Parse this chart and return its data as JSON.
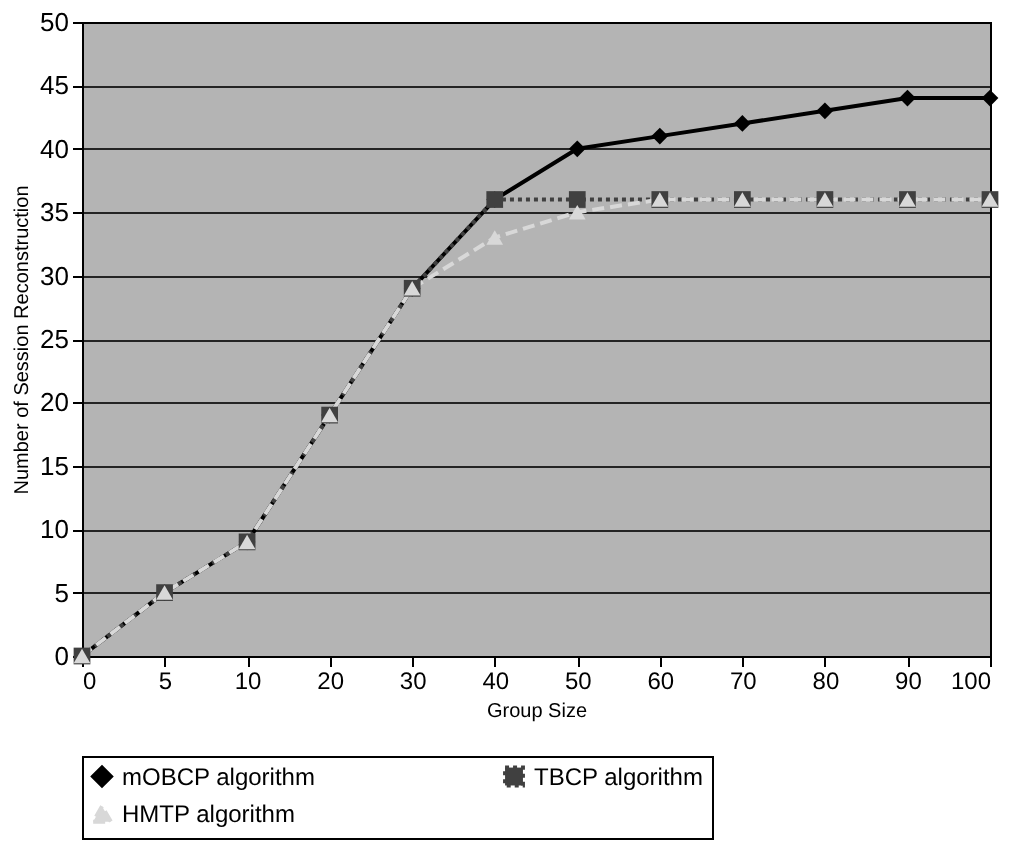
{
  "chart_data": {
    "type": "line",
    "xlabel": "Group Size",
    "ylabel": "Number of Session Reconstruction",
    "categories": [
      "0",
      "5",
      "10",
      "20",
      "30",
      "40",
      "50",
      "60",
      "70",
      "80",
      "90",
      "100"
    ],
    "ylim": [
      0,
      50
    ],
    "yticks": [
      0,
      5,
      10,
      15,
      20,
      25,
      30,
      35,
      40,
      45,
      50
    ],
    "grid": "y",
    "legend": "bottom",
    "series": [
      {
        "name": "mOBCP algorithm",
        "color": "#000000",
        "marker": "diamond",
        "line_style": "solid",
        "values": [
          0,
          5,
          9,
          19,
          29,
          36,
          40,
          41,
          42,
          43,
          44,
          44
        ]
      },
      {
        "name": "TBCP algorithm",
        "color": "#404040",
        "marker": "square",
        "line_style": "dotted",
        "values": [
          0,
          5,
          9,
          19,
          29,
          36,
          36,
          36,
          36,
          36,
          36,
          36
        ]
      },
      {
        "name": "HMTP algorithm",
        "color": "#d8d8d8",
        "marker": "triangle",
        "line_style": "dashed",
        "values": [
          0,
          5,
          9,
          19,
          29,
          33,
          35,
          36,
          36,
          36,
          36,
          36
        ]
      }
    ]
  }
}
